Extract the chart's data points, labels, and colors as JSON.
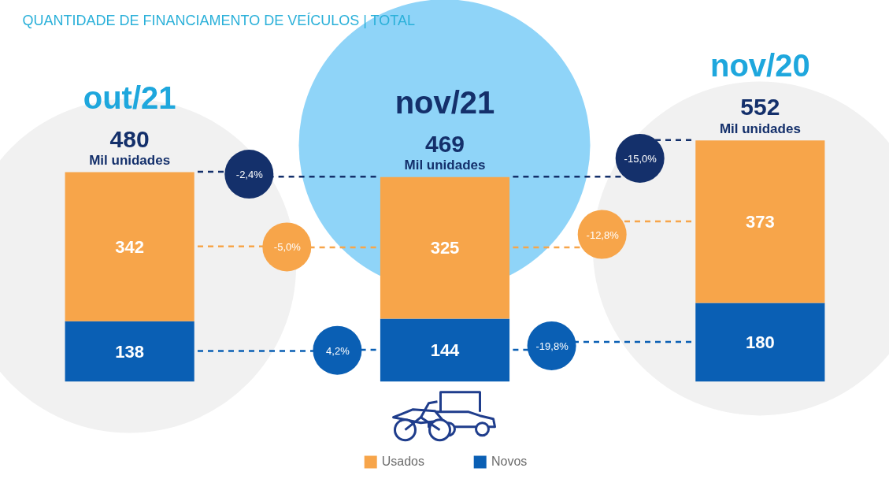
{
  "chart_data": {
    "type": "bar",
    "title": "QUANTIDADE DE FINANCIAMENTO DE VEÍCULOS | TOTAL",
    "categories": [
      "out/21",
      "nov/21",
      "nov/20"
    ],
    "series": [
      {
        "name": "Novos",
        "color": "#0a5fb4",
        "values": [
          138,
          144,
          180
        ]
      },
      {
        "name": "Usados",
        "color": "#f7a54a",
        "values": [
          342,
          325,
          373
        ]
      }
    ],
    "stacked": true,
    "data_labels": true,
    "totals": [
      "480",
      "469",
      "552"
    ],
    "annotations": [
      {
        "text": "Mil unidades",
        "x": "out/21",
        "y": 480
      },
      {
        "text": "Mil unidades",
        "x": "nov/21",
        "y": 469
      },
      {
        "text": "Mil unidades",
        "x": "nov/20",
        "y": 552
      },
      "-2,4%",
      "-5,0%",
      "4,2%",
      "-15,0%",
      "-12,8%",
      "-19,8%"
    ],
    "legend": "bottom"
  }
}
